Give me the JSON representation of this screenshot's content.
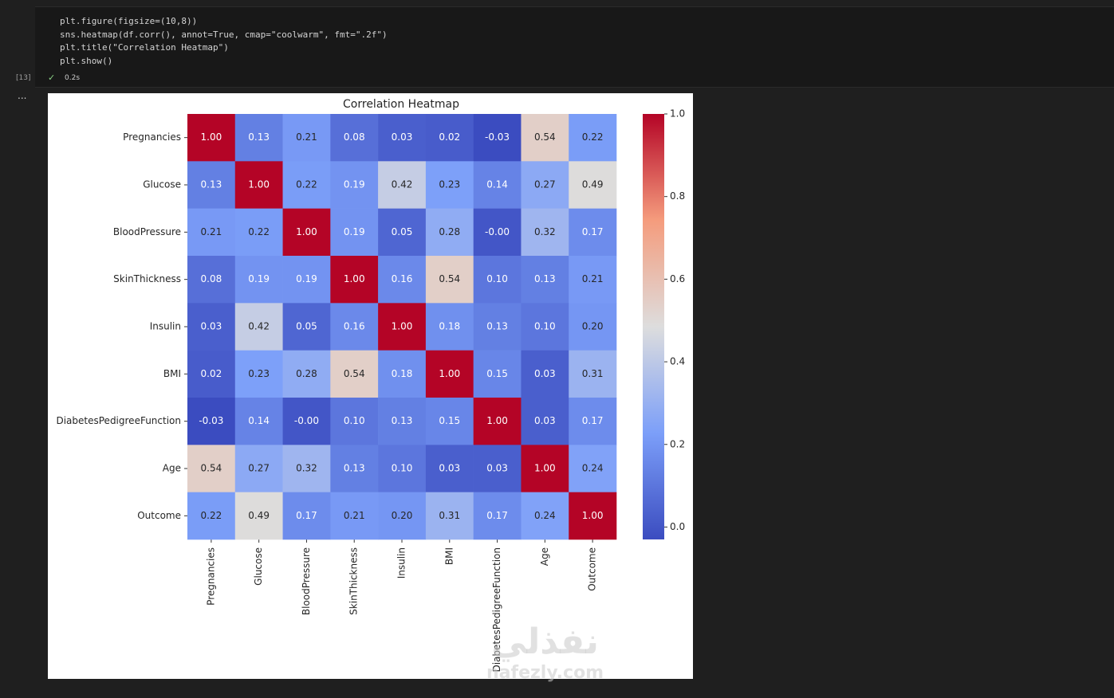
{
  "cell": {
    "execution_count": "[13]",
    "code": [
      "plt.figure(figsize=(10,8))",
      "sns.heatmap(df.corr(), annot=True, cmap=\"coolwarm\", fmt=\".2f\")",
      "plt.title(\"Correlation Heatmap\")",
      "plt.show()"
    ],
    "status_time": "0.2s",
    "output_prompt": "..."
  },
  "chart_data": {
    "type": "heatmap",
    "title": "Correlation Heatmap",
    "cmap": "coolwarm",
    "categories": [
      "Pregnancies",
      "Glucose",
      "BloodPressure",
      "SkinThickness",
      "Insulin",
      "BMI",
      "DiabetesPedigreeFunction",
      "Age",
      "Outcome"
    ],
    "values": [
      [
        1,
        0.13,
        0.21,
        0.08,
        0.03,
        0.02,
        -0.03,
        0.54,
        0.22
      ],
      [
        0.13,
        1,
        0.22,
        0.19,
        0.42,
        0.23,
        0.14,
        0.27,
        0.49
      ],
      [
        0.21,
        0.22,
        1,
        0.19,
        0.05,
        0.28,
        -0.0,
        0.32,
        0.17
      ],
      [
        0.08,
        0.19,
        0.19,
        1,
        0.16,
        0.54,
        0.1,
        0.13,
        0.21
      ],
      [
        0.03,
        0.42,
        0.05,
        0.16,
        1,
        0.18,
        0.13,
        0.1,
        0.2
      ],
      [
        0.02,
        0.23,
        0.28,
        0.54,
        0.18,
        1,
        0.15,
        0.03,
        0.31
      ],
      [
        -0.03,
        0.14,
        -0.0,
        0.1,
        0.13,
        0.15,
        1,
        0.03,
        0.17
      ],
      [
        0.54,
        0.27,
        0.32,
        0.13,
        0.1,
        0.03,
        0.03,
        1,
        0.24
      ],
      [
        0.22,
        0.49,
        0.17,
        0.21,
        0.2,
        0.31,
        0.17,
        0.24,
        1
      ]
    ],
    "value_labels": [
      [
        "1.00",
        "0.13",
        "0.21",
        "0.08",
        "0.03",
        "0.02",
        "-0.03",
        "0.54",
        "0.22"
      ],
      [
        "0.13",
        "1.00",
        "0.22",
        "0.19",
        "0.42",
        "0.23",
        "0.14",
        "0.27",
        "0.49"
      ],
      [
        "0.21",
        "0.22",
        "1.00",
        "0.19",
        "0.05",
        "0.28",
        "-0.00",
        "0.32",
        "0.17"
      ],
      [
        "0.08",
        "0.19",
        "0.19",
        "1.00",
        "0.16",
        "0.54",
        "0.10",
        "0.13",
        "0.21"
      ],
      [
        "0.03",
        "0.42",
        "0.05",
        "0.16",
        "1.00",
        "0.18",
        "0.13",
        "0.10",
        "0.20"
      ],
      [
        "0.02",
        "0.23",
        "0.28",
        "0.54",
        "0.18",
        "1.00",
        "0.15",
        "0.03",
        "0.31"
      ],
      [
        "-0.03",
        "0.14",
        "-0.00",
        "0.10",
        "0.13",
        "0.15",
        "1.00",
        "0.03",
        "0.17"
      ],
      [
        "0.54",
        "0.27",
        "0.32",
        "0.13",
        "0.10",
        "0.03",
        "0.03",
        "1.00",
        "0.24"
      ],
      [
        "0.22",
        "0.49",
        "0.17",
        "0.21",
        "0.20",
        "0.31",
        "0.17",
        "0.24",
        "1.00"
      ]
    ],
    "clim": [
      -0.03,
      1
    ],
    "cticks": [
      {
        "value": 0,
        "label": "0.0"
      },
      0.2,
      0.4,
      0.6,
      0.8,
      {
        "value": 1,
        "label": "1.0"
      }
    ]
  },
  "watermark": {
    "arabic": "نفذلي",
    "latin": "nafezly.com"
  }
}
